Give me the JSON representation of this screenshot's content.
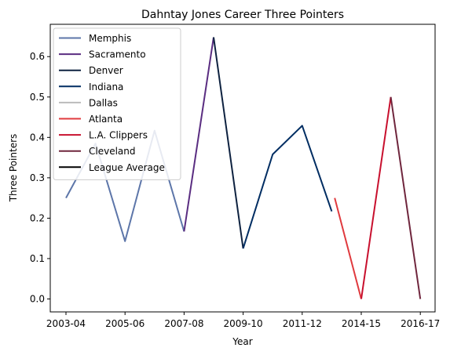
{
  "chart_data": {
    "type": "line",
    "title": "Dahntay Jones Career Three Pointers",
    "xlabel": "Year",
    "ylabel": "Three Pointers",
    "x_ticks": [
      "2003-04",
      "2005-06",
      "2007-08",
      "2009-10",
      "2011-12",
      "2014-15",
      "2016-17"
    ],
    "y_ticks": [
      "0.0",
      "0.1",
      "0.2",
      "0.3",
      "0.4",
      "0.5",
      "0.6"
    ],
    "ylim": [
      -0.032,
      0.68
    ],
    "grid": false,
    "legend_position": "top-left",
    "series": [
      {
        "name": "Memphis",
        "color": "#5D76A9",
        "points": [
          [
            0,
            0.25
          ],
          [
            1,
            0.385
          ],
          [
            2,
            0.143
          ],
          [
            3,
            0.417
          ],
          [
            4,
            0.167
          ]
        ]
      },
      {
        "name": "Sacramento",
        "color": "#5A2D81",
        "points": [
          [
            4,
            0.167
          ],
          [
            5,
            0.648
          ]
        ]
      },
      {
        "name": "Denver",
        "color": "#0E2240",
        "points": [
          [
            5,
            0.648
          ],
          [
            6,
            0.125
          ]
        ]
      },
      {
        "name": "Indiana",
        "color": "#002D62",
        "points": [
          [
            6,
            0.125
          ],
          [
            7,
            0.358
          ],
          [
            8,
            0.429
          ],
          [
            9,
            0.217
          ]
        ]
      },
      {
        "name": "Dallas",
        "color": "#BBBBBB",
        "points": []
      },
      {
        "name": "Atlanta",
        "color": "#E03A3E",
        "points": [
          [
            9.1,
            0.25
          ],
          [
            10,
            0.0
          ]
        ]
      },
      {
        "name": "L.A. Clippers",
        "color": "#C8102E",
        "points": [
          [
            10,
            0.0
          ],
          [
            11,
            0.5
          ]
        ]
      },
      {
        "name": "Cleveland",
        "color": "#6F263D",
        "points": [
          [
            11,
            0.5
          ],
          [
            12,
            0.0
          ]
        ]
      },
      {
        "name": "League Average",
        "color": "#000000",
        "points": []
      }
    ]
  }
}
